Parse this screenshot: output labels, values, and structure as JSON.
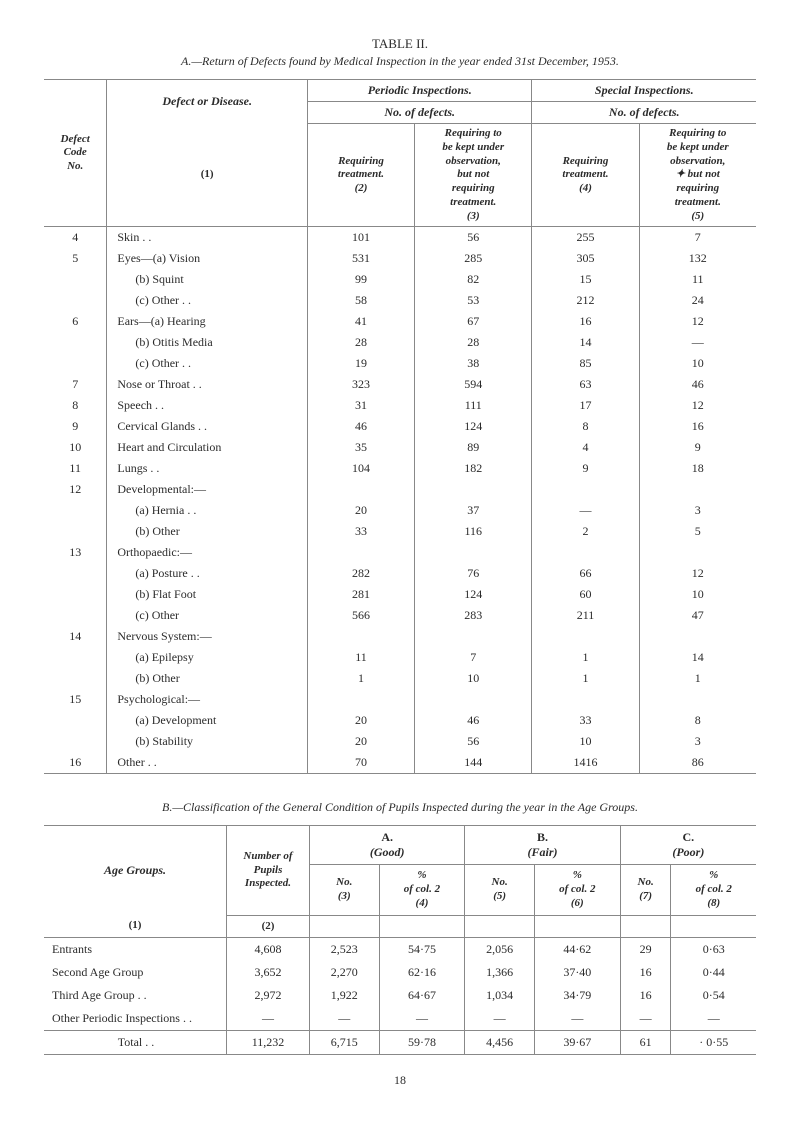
{
  "tableA": {
    "title": "TABLE II.",
    "subtitle": "A.—Return of Defects found by Medical Inspection in the year ended 31st December, 1953.",
    "headers": {
      "defect_code": "Defect\nCode\nNo.",
      "defect_disease": "Defect or Disease.",
      "col1_sub": "(1)",
      "periodic": "Periodic Inspections.",
      "special": "Special Inspections.",
      "no_defects": "No. of defects.",
      "req_treat": "Requiring\ntreatment.",
      "col2_sub": "(2)",
      "req_obs_a": "Requiring to\nbe kept under\nobservation,\nbut not\nrequiring\ntreatment.",
      "col3_sub": "(3)",
      "col4_sub": "(4)",
      "req_obs_b": "Requiring to\nbe kept under\nobservation,\n✦ but not\nrequiring\ntreatment.",
      "col5_sub": "(5)"
    },
    "rows": [
      {
        "code": "4",
        "label": "Skin   . .",
        "c2": "101",
        "c3": "56",
        "c4": "255",
        "c5": "7"
      },
      {
        "code": "5",
        "label": "Eyes—(a)  Vision",
        "c2": "531",
        "c3": "285",
        "c4": "305",
        "c5": "132"
      },
      {
        "code": "",
        "label": "(b)  Squint",
        "indent": true,
        "c2": "99",
        "c3": "82",
        "c4": "15",
        "c5": "11"
      },
      {
        "code": "",
        "label": "(c)  Other  . .",
        "indent": true,
        "c2": "58",
        "c3": "53",
        "c4": "212",
        "c5": "24"
      },
      {
        "code": "6",
        "label": "Ears—(a)  Hearing",
        "c2": "41",
        "c3": "67",
        "c4": "16",
        "c5": "12"
      },
      {
        "code": "",
        "label": "(b)  Otitis Media",
        "indent": true,
        "c2": "28",
        "c3": "28",
        "c4": "14",
        "c5": "—"
      },
      {
        "code": "",
        "label": "(c)  Other  . .",
        "indent": true,
        "c2": "19",
        "c3": "38",
        "c4": "85",
        "c5": "10"
      },
      {
        "code": "7",
        "label": "Nose or Throat   . .",
        "c2": "323",
        "c3": "594",
        "c4": "63",
        "c5": "46"
      },
      {
        "code": "8",
        "label": "Speech   . .",
        "c2": "31",
        "c3": "111",
        "c4": "17",
        "c5": "12"
      },
      {
        "code": "9",
        "label": "Cervical Glands   . .",
        "c2": "46",
        "c3": "124",
        "c4": "8",
        "c5": "16"
      },
      {
        "code": "10",
        "label": "Heart and Circulation",
        "c2": "35",
        "c3": "89",
        "c4": "4",
        "c5": "9"
      },
      {
        "code": "11",
        "label": "Lungs   . .",
        "c2": "104",
        "c3": "182",
        "c4": "9",
        "c5": "18"
      },
      {
        "code": "12",
        "label": "Developmental:—",
        "c2": "",
        "c3": "",
        "c4": "",
        "c5": ""
      },
      {
        "code": "",
        "label": "(a)  Hernia   . .",
        "indent": true,
        "c2": "20",
        "c3": "37",
        "c4": "—",
        "c5": "3"
      },
      {
        "code": "",
        "label": "(b)  Other",
        "indent": true,
        "c2": "33",
        "c3": "116",
        "c4": "2",
        "c5": "5"
      },
      {
        "code": "13",
        "label": "Orthopaedic:—",
        "c2": "",
        "c3": "",
        "c4": "",
        "c5": ""
      },
      {
        "code": "",
        "label": "(a)  Posture  . .",
        "indent": true,
        "c2": "282",
        "c3": "76",
        "c4": "66",
        "c5": "12"
      },
      {
        "code": "",
        "label": "(b)  Flat Foot",
        "indent": true,
        "c2": "281",
        "c3": "124",
        "c4": "60",
        "c5": "10"
      },
      {
        "code": "",
        "label": "(c)  Other",
        "indent": true,
        "c2": "566",
        "c3": "283",
        "c4": "211",
        "c5": "47"
      },
      {
        "code": "14",
        "label": "Nervous System:—",
        "c2": "",
        "c3": "",
        "c4": "",
        "c5": ""
      },
      {
        "code": "",
        "label": "(a)  Epilepsy",
        "indent": true,
        "c2": "11",
        "c3": "7",
        "c4": "1",
        "c5": "14"
      },
      {
        "code": "",
        "label": "(b)  Other",
        "indent": true,
        "c2": "1",
        "c3": "10",
        "c4": "1",
        "c5": "1"
      },
      {
        "code": "15",
        "label": "Psychological:—",
        "c2": "",
        "c3": "",
        "c4": "",
        "c5": ""
      },
      {
        "code": "",
        "label": "(a)  Development",
        "indent": true,
        "c2": "20",
        "c3": "46",
        "c4": "33",
        "c5": "8"
      },
      {
        "code": "",
        "label": "(b)  Stability",
        "indent": true,
        "c2": "20",
        "c3": "56",
        "c4": "10",
        "c5": "3"
      },
      {
        "code": "16",
        "label": "Other   . .",
        "c2": "70",
        "c3": "144",
        "c4": "1416",
        "c5": "86"
      }
    ]
  },
  "tableB": {
    "subtitle": "B.—Classification of the General Condition of Pupils Inspected during the year in the Age Groups.",
    "headers": {
      "age_groups": "Age Groups.",
      "col1_sub": "(1)",
      "num_pupils": "Number of\nPupils\nInspected.",
      "col2_sub": "(2)",
      "A": "A.",
      "A_sub": "(Good)",
      "B": "B.",
      "B_sub": "(Fair)",
      "C": "C.",
      "C_sub": "(Poor)",
      "no": "No.",
      "pct": "%\nof col. 2",
      "c3": "(3)",
      "c4": "(4)",
      "c5": "(5)",
      "c6": "(6)",
      "c7": "(7)",
      "c8": "(8)"
    },
    "rows": [
      {
        "label": "Entrants",
        "n": "4,608",
        "a_n": "2,523",
        "a_p": "54·75",
        "b_n": "2,056",
        "b_p": "44·62",
        "c_n": "29",
        "c_p": "0·63"
      },
      {
        "label": "Second Age Group",
        "n": "3,652",
        "a_n": "2,270",
        "a_p": "62·16",
        "b_n": "1,366",
        "b_p": "37·40",
        "c_n": "16",
        "c_p": "0·44"
      },
      {
        "label": "Third Age Group  . .",
        "n": "2,972",
        "a_n": "1,922",
        "a_p": "64·67",
        "b_n": "1,034",
        "b_p": "34·79",
        "c_n": "16",
        "c_p": "0·54"
      },
      {
        "label": "Other Periodic Inspections  . .",
        "n": "—",
        "a_n": "—",
        "a_p": "—",
        "b_n": "—",
        "b_p": "—",
        "c_n": "—",
        "c_p": "—"
      },
      {
        "label": "Total     . .",
        "n": "11,232",
        "a_n": "6,715",
        "a_p": "59·78",
        "b_n": "4,456",
        "b_p": "39·67",
        "c_n": "61",
        "c_p": "· 0·55",
        "total": true
      }
    ]
  },
  "page_number": "18"
}
